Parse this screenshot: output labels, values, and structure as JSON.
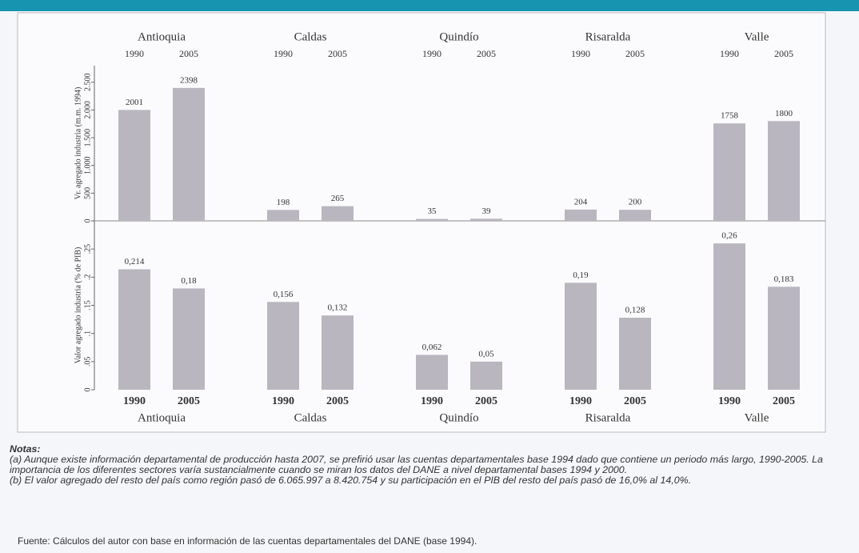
{
  "chart_data": [
    {
      "type": "bar",
      "ylabel": "Vr. agregado industria (m.m. 1994)",
      "categories": [
        "Antioquia",
        "Caldas",
        "Quindío",
        "Risaralda",
        "Valle"
      ],
      "series": [
        {
          "name": "1990",
          "color": "#b9b6c0",
          "values": [
            2001,
            198,
            35,
            204,
            1758
          ]
        },
        {
          "name": "2005",
          "color": "#b9b6c0",
          "values": [
            2398,
            265,
            39,
            200,
            1800
          ]
        }
      ],
      "ylim": [
        0,
        2800
      ],
      "yticks": [
        0,
        500,
        {
          "value": 1000,
          "label": "1.000"
        },
        {
          "value": 1500,
          "label": "1.500"
        },
        {
          "value": 2000,
          "label": "2.000"
        },
        {
          "value": 2500,
          "label": "2.500"
        }
      ],
      "label_position": "top"
    },
    {
      "type": "bar",
      "ylabel": "Valor agregado industria (% de PIB)",
      "categories": [
        "Antioquia",
        "Caldas",
        "Quindío",
        "Risaralda",
        "Valle"
      ],
      "series": [
        {
          "name": "1990",
          "color": "#b9b6c0",
          "values": [
            0.214,
            0.156,
            0.062,
            0.19,
            0.26
          ],
          "value_labels": [
            "0,214",
            "0,156",
            "0,062",
            "0,19",
            "0,26"
          ]
        },
        {
          "name": "2005",
          "color": "#b9b6c0",
          "values": [
            0.18,
            0.132,
            0.05,
            0.128,
            0.183
          ],
          "value_labels": [
            "0,18",
            "0,132",
            "0,05",
            "0,128",
            "0,183"
          ]
        }
      ],
      "ylim": [
        0,
        0.3
      ],
      "yticks": [
        0,
        {
          "value": 0.05,
          "label": ".05"
        },
        {
          "value": 0.1,
          "label": ".1"
        },
        {
          "value": 0.15,
          "label": ".15"
        },
        {
          "value": 0.2,
          "label": ".2"
        },
        {
          "value": 0.25,
          "label": ".25"
        }
      ],
      "label_position": "bottom"
    }
  ],
  "notes": {
    "title": "Notas:",
    "items": [
      "(a) Aunque existe información departamental de producción hasta 2007, se prefirió usar las cuentas departamentales base 1994 dado que contiene un periodo más largo, 1990-2005. La importancia de los diferentes sectores varía sustancialmente cuando se miran los datos del DANE a nivel departamental bases 1994 y 2000.",
      "(b) El valor agregado del resto del país como región pasó de 6.065.997 a  8.420.754 y su participación en el PIB del resto del país pasó de 16,0% al 14,0%."
    ]
  },
  "source": "Fuente: Cálculos del autor con base en información de las cuentas departamentales del DANE (base 1994)."
}
